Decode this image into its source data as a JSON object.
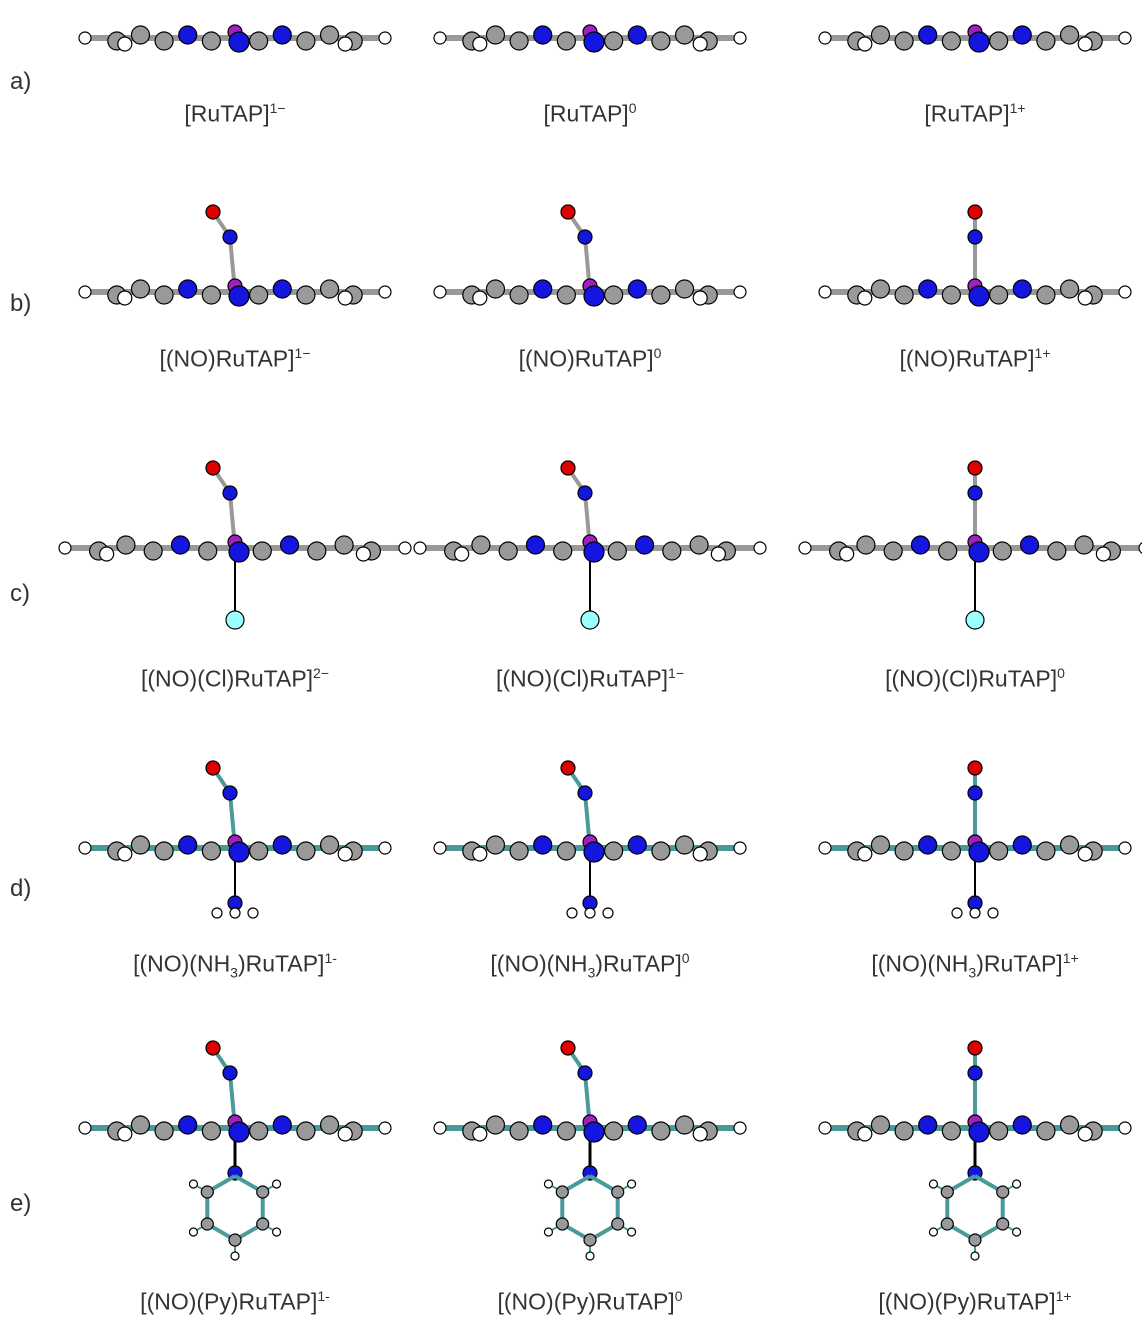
{
  "rows": [
    {
      "label": "a)",
      "items": [
        {
          "main": "[RuTAP]",
          "sup": "1−"
        },
        {
          "main": "[RuTAP]",
          "sup": "0"
        },
        {
          "main": "[RuTAP]",
          "sup": "1+"
        }
      ]
    },
    {
      "label": "b)",
      "items": [
        {
          "main": "[(NO)RuTAP]",
          "sup": "1−"
        },
        {
          "main": "[(NO)RuTAP]",
          "sup": "0"
        },
        {
          "main": "[(NO)RuTAP]",
          "sup": "1+"
        }
      ]
    },
    {
      "label": "c)",
      "items": [
        {
          "main": "[(NO)(Cl)RuTAP]",
          "sup": "2−"
        },
        {
          "main": "[(NO)(Cl)RuTAP]",
          "sup": "1−"
        },
        {
          "main": "[(NO)(Cl)RuTAP]",
          "sup": "0"
        }
      ]
    },
    {
      "label": "d)",
      "items": [
        {
          "main": "[(NO)(NH",
          "sub": "3",
          "rest": ")RuTAP]",
          "sup": "1-"
        },
        {
          "main": "[(NO)(NH",
          "sub": "3",
          "rest": ")RuTAP]",
          "sup": "0"
        },
        {
          "main": "[(NO)(NH",
          "sub": "3",
          "rest": ")RuTAP]",
          "sup": "1+"
        }
      ]
    },
    {
      "label": "e)",
      "items": [
        {
          "main": "[(NO)(Py)RuTAP]",
          "sup": "1-"
        },
        {
          "main": "[(NO)(Py)RuTAP]",
          "sup": "0"
        },
        {
          "main": "[(NO)(Py)RuTAP]",
          "sup": "1+"
        }
      ]
    }
  ]
}
